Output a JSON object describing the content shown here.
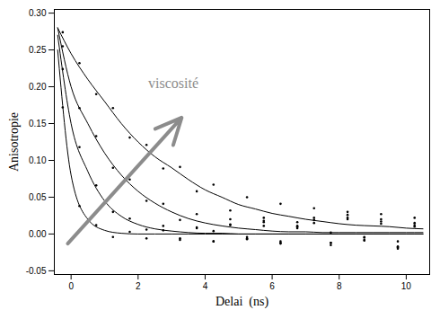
{
  "chart_data": {
    "type": "scatter",
    "x_label": "Delai  (ns)",
    "y_label": "Anisotropie",
    "xlim": [
      -0.5,
      10.7
    ],
    "ylim": [
      -0.055,
      0.305
    ],
    "xticks": [
      0,
      2,
      4,
      6,
      8,
      10
    ],
    "yticks": [
      {
        "value": -0.05,
        "label": "-0.05"
      },
      {
        "value": 0,
        "label": "0.00"
      },
      {
        "value": 0.05,
        "label": "0.05"
      },
      {
        "value": 0.1,
        "label": "0.10"
      },
      {
        "value": 0.15,
        "label": "0.15"
      },
      {
        "value": 0.2,
        "label": "0.20"
      },
      {
        "value": 0.25,
        "label": "0.25"
      },
      {
        "value": 0.3,
        "label": "0.30"
      }
    ],
    "grid": false,
    "series": [
      {
        "type": "scatter",
        "marker": "dot",
        "color": "#000000",
        "x": [
          -0.25,
          0.25,
          0.75,
          1.25,
          1.75,
          2.25,
          2.75,
          3.25,
          3.75,
          4.25,
          4.75,
          5.25,
          5.75,
          6.25,
          6.75,
          7.25,
          7.75,
          8.25,
          8.75,
          9.25,
          9.75,
          10.25
        ],
        "values": [
          0.172,
          0.038,
          0.012,
          -0.004,
          0.003,
          -0.006,
          0.005,
          -0.008,
          0.009,
          -0.01,
          0.012,
          -0.007,
          0.011,
          -0.013,
          0.008,
          0.015,
          -0.012,
          0.02,
          -0.009,
          0.014,
          -0.018,
          0.01
        ]
      },
      {
        "type": "scatter",
        "marker": "dot",
        "color": "#000000",
        "x": [
          -0.25,
          0.25,
          0.75,
          1.25,
          1.75,
          2.25,
          2.75,
          3.25,
          3.75,
          4.25,
          4.75,
          5.25,
          5.75,
          6.25,
          6.75,
          7.25,
          7.75,
          8.25,
          8.75,
          9.25,
          9.75,
          10.25
        ],
        "values": [
          0.224,
          0.118,
          0.066,
          0.03,
          0.021,
          0.006,
          0.011,
          -0.006,
          0.008,
          -0.01,
          0.013,
          -0.004,
          0.016,
          -0.012,
          0.01,
          0.019,
          -0.015,
          0.022,
          -0.008,
          0.017,
          -0.02,
          0.012
        ]
      },
      {
        "type": "scatter",
        "marker": "dot",
        "color": "#000000",
        "x": [
          -0.25,
          0.25,
          0.75,
          1.25,
          1.75,
          2.25,
          2.75,
          3.25,
          3.75,
          4.25,
          4.75,
          5.25,
          5.75,
          6.25,
          6.75,
          7.25,
          7.75,
          8.25,
          8.75,
          9.25,
          9.75,
          10.25
        ],
        "values": [
          0.255,
          0.171,
          0.133,
          0.09,
          0.074,
          0.045,
          0.041,
          0.019,
          0.027,
          0.004,
          0.02,
          -0.006,
          0.018,
          -0.01,
          0.016,
          0.022,
          -0.012,
          0.026,
          -0.005,
          0.02,
          -0.017,
          0.015
        ]
      },
      {
        "type": "scatter",
        "marker": "dot",
        "color": "#000000",
        "x": [
          -0.25,
          0.25,
          0.75,
          1.25,
          1.75,
          2.25,
          2.75,
          3.25,
          3.75,
          4.25,
          4.75,
          5.25,
          5.75,
          6.25,
          6.75,
          7.25,
          7.75,
          8.25,
          8.75,
          9.25,
          9.75,
          10.25
        ],
        "values": [
          0.274,
          0.232,
          0.19,
          0.171,
          0.131,
          0.121,
          0.089,
          0.091,
          0.058,
          0.067,
          0.032,
          0.05,
          0.022,
          0.041,
          0.011,
          0.035,
          0.002,
          0.03,
          -0.004,
          0.027,
          -0.01,
          0.022
        ]
      },
      {
        "type": "line",
        "line_style": "solid",
        "color": "#000000",
        "x": [
          -0.4,
          0,
          0.5,
          1,
          1.5,
          2,
          2.5,
          3,
          3.5,
          4,
          4.5,
          5,
          5.5,
          6,
          6.5,
          7,
          7.5,
          8,
          8.5,
          9,
          9.5,
          10,
          10.5
        ],
        "values": [
          0.25,
          0.08,
          0.02,
          0.005,
          0.001,
          0,
          0,
          0,
          0,
          0,
          0,
          0,
          0,
          0,
          0,
          0,
          0,
          0,
          0,
          0,
          0,
          0,
          0
        ]
      },
      {
        "type": "line",
        "line_style": "solid",
        "color": "#000000",
        "x": [
          -0.4,
          0,
          0.5,
          1,
          1.5,
          2,
          2.5,
          3,
          3.5,
          4,
          4.5,
          5,
          5.5,
          6,
          6.5,
          7,
          7.5,
          8,
          8.5,
          9,
          9.5,
          10,
          10.5
        ],
        "values": [
          0.27,
          0.15,
          0.085,
          0.045,
          0.024,
          0.013,
          0.007,
          0.004,
          0.002,
          0.001,
          0.001,
          0,
          0,
          0,
          0,
          0,
          0,
          0,
          0,
          0,
          0,
          0,
          0
        ]
      },
      {
        "type": "line",
        "line_style": "solid",
        "color": "#000000",
        "x": [
          -0.4,
          0,
          0.5,
          1,
          1.5,
          2,
          2.5,
          3,
          3.5,
          4,
          4.5,
          5,
          5.5,
          6,
          6.5,
          7,
          7.5,
          8,
          8.5,
          9,
          9.5,
          10,
          10.5
        ],
        "values": [
          0.28,
          0.2,
          0.15,
          0.11,
          0.08,
          0.058,
          0.042,
          0.03,
          0.021,
          0.015,
          0.011,
          0.008,
          0.006,
          0.004,
          0.003,
          0.003,
          0.002,
          0.002,
          0.002,
          0.002,
          0.002,
          0.002,
          0.002
        ]
      },
      {
        "type": "line",
        "line_style": "solid",
        "color": "#000000",
        "x": [
          -0.4,
          0,
          0.5,
          1,
          1.5,
          2,
          2.5,
          3,
          3.5,
          4,
          4.5,
          5,
          5.5,
          6,
          6.5,
          7,
          7.5,
          8,
          8.5,
          9,
          9.5,
          10,
          10.5
        ],
        "values": [
          0.28,
          0.245,
          0.21,
          0.18,
          0.15,
          0.125,
          0.105,
          0.09,
          0.074,
          0.06,
          0.05,
          0.04,
          0.034,
          0.028,
          0.024,
          0.02,
          0.017,
          0.014,
          0.012,
          0.011,
          0.01,
          0.008,
          0.007
        ]
      }
    ],
    "annotations": [
      {
        "text": "viscosité",
        "x": 2.3,
        "y": 0.205,
        "color": "#8c8c8c",
        "arrow": {
          "x1": -0.1,
          "y1": -0.013,
          "x2": 3.3,
          "y2": 0.158
        }
      }
    ]
  }
}
